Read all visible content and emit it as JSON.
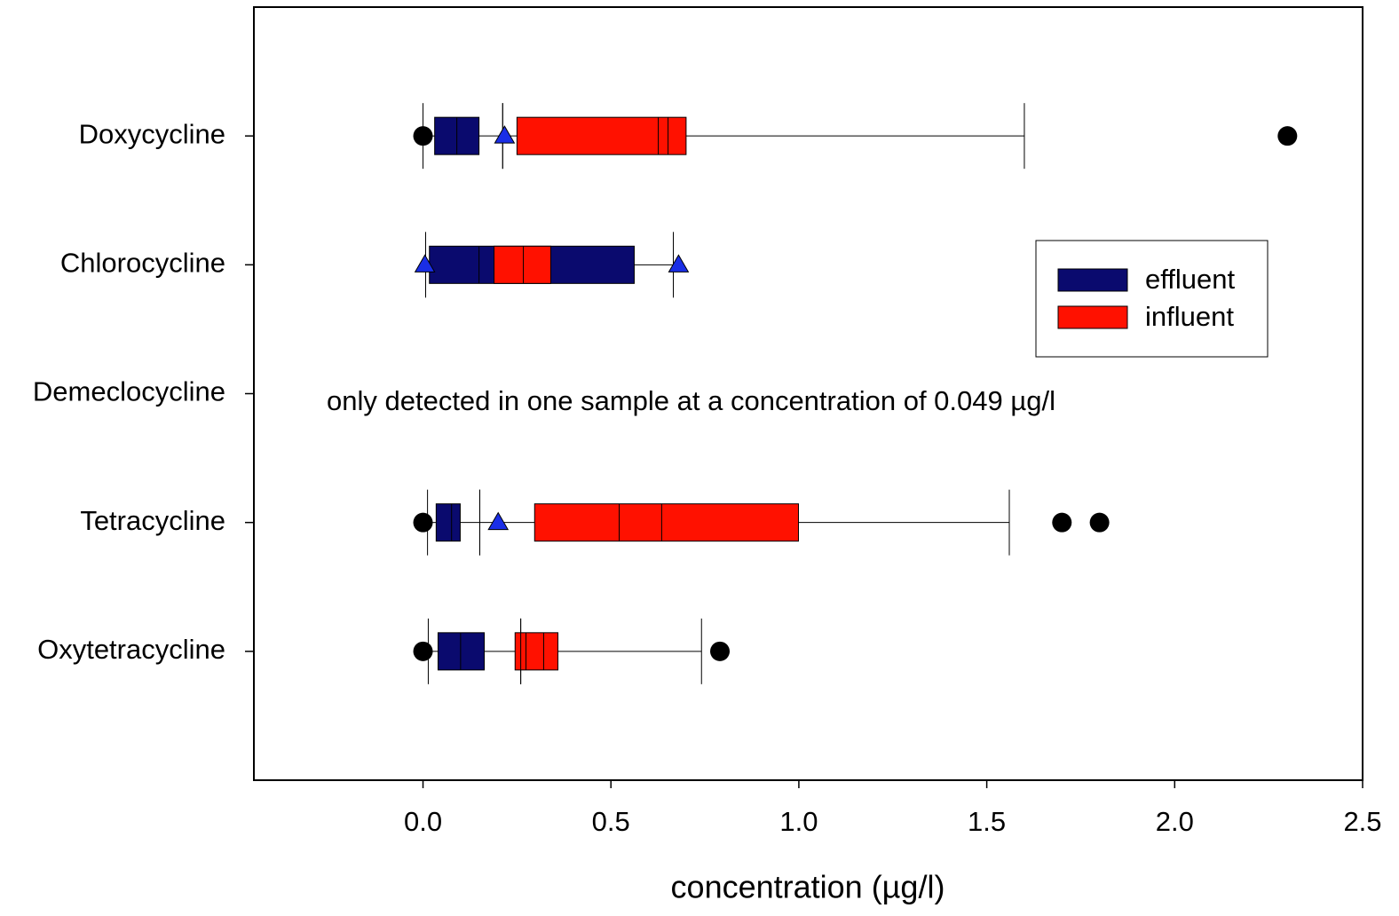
{
  "chart_data": {
    "type": "boxplot",
    "orientation": "horizontal",
    "x_label": "concentration (µg/l)",
    "annotation": "only detected in one sample at a concentration of 0.049 µg/l",
    "categories": [
      "Doxycycline",
      "Chlorocycline",
      "Demeclocycline",
      "Tetracycline",
      "Oxytetracycline"
    ],
    "xlim": [
      -0.45,
      2.5
    ],
    "xticks": [
      {
        "value": 0,
        "label": "0.0"
      },
      0.5,
      {
        "value": 1,
        "label": "1.0"
      },
      1.5,
      {
        "value": 2,
        "label": "2.0"
      },
      2.5
    ],
    "legend_position": "upper right",
    "series": [
      {
        "name": "effluent",
        "color": "#0a0a6e",
        "outlier_color": "#1a2ee6",
        "outlier_marker": "triangle",
        "whisker_low": [
          0.0,
          0.007,
          null,
          0.012,
          0.014
        ],
        "q1": [
          0.031,
          0.017,
          null,
          0.035,
          0.04
        ],
        "median": [
          0.09,
          0.149,
          null,
          0.076,
          0.1
        ],
        "mean": [
          null,
          null,
          null,
          null,
          null
        ],
        "q3": [
          0.149,
          0.562,
          null,
          0.099,
          0.163
        ],
        "whisker_high": [
          0.212,
          0.666,
          null,
          0.151,
          0.26
        ],
        "outliers": [
          [
            0.217
          ],
          [
            0.005,
            0.68
          ],
          [],
          [
            0.2
          ],
          []
        ]
      },
      {
        "name": "influent",
        "color": "#ff1100",
        "outlier_color": "#000000",
        "outlier_marker": "circle",
        "whisker_low": [
          0.212,
          null,
          null,
          0.151,
          0.26
        ],
        "q1": [
          0.25,
          0.189,
          null,
          0.297,
          0.245
        ],
        "median": [
          0.626,
          0.267,
          null,
          0.522,
          0.274
        ],
        "mean": [
          0.652,
          null,
          null,
          0.635,
          0.321
        ],
        "q3": [
          0.7,
          0.34,
          null,
          0.999,
          0.359
        ],
        "whisker_high": [
          1.6,
          null,
          null,
          1.56,
          0.741
        ],
        "outliers": [
          [
            0.0,
            2.3
          ],
          [],
          [],
          [
            0.0,
            1.7,
            1.8
          ],
          [
            0.0,
            0.79
          ]
        ]
      }
    ]
  }
}
